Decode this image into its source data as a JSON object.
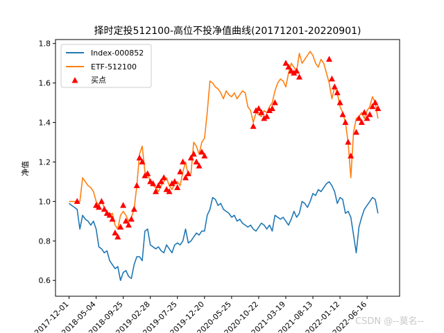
{
  "watermark": "CSDN @--莫名--",
  "chart_data": {
    "type": "line",
    "title": "择时定投512100-高位不投净值曲线(20171201-20220901)",
    "xlabel": "",
    "ylabel": "净值",
    "xlim": [
      -5,
      122
    ],
    "ylim": [
      0.52,
      1.82
    ],
    "yticks": [
      0.6,
      0.8,
      1.0,
      1.2,
      1.4,
      1.6,
      1.8
    ],
    "ytick_labels": [
      "0.6",
      "0.8",
      "1.0",
      "1.2",
      "1.4",
      "1.6",
      "1.8"
    ],
    "xticks": [
      0,
      10,
      20,
      30,
      40,
      50,
      60,
      70,
      80,
      90,
      100,
      110
    ],
    "xtick_labels": [
      "2017-12-01",
      "2018-05-04",
      "2018-09-25",
      "2019-02-28",
      "2019-07-25",
      "2019-12-20",
      "2020-05-25",
      "2020-10-22",
      "2021-03-19",
      "2021-08-13",
      "2022-01-12",
      "2022-06-16"
    ],
    "legend_position": "top-left",
    "grid": false,
    "series": [
      {
        "name": "Index-000852",
        "color": "#1f77b4",
        "x": [
          0,
          1,
          2,
          3,
          4,
          5,
          6,
          7,
          8,
          9,
          10,
          11,
          12,
          13,
          14,
          15,
          16,
          17,
          18,
          19,
          20,
          21,
          22,
          23,
          24,
          25,
          26,
          27,
          28,
          29,
          30,
          31,
          32,
          33,
          34,
          35,
          36,
          37,
          38,
          39,
          40,
          41,
          42,
          43,
          44,
          45,
          46,
          47,
          48,
          49,
          50,
          51,
          52,
          53,
          54,
          55,
          56,
          57,
          58,
          59,
          60,
          61,
          62,
          63,
          64,
          65,
          66,
          67,
          68,
          69,
          70,
          71,
          72,
          73,
          74,
          75,
          76,
          77,
          78,
          79,
          80,
          81,
          82,
          83,
          84,
          85,
          86,
          87,
          88,
          89,
          90,
          91,
          92,
          93,
          94,
          95,
          96,
          97,
          98,
          99,
          100,
          101,
          102,
          103,
          104,
          105,
          106,
          107,
          108,
          109,
          110,
          111,
          112,
          113,
          114
        ],
        "values": [
          0.99,
          0.98,
          0.97,
          0.96,
          0.86,
          0.93,
          0.91,
          0.9,
          0.88,
          0.9,
          0.86,
          0.77,
          0.76,
          0.74,
          0.75,
          0.7,
          0.68,
          0.66,
          0.67,
          0.6,
          0.64,
          0.65,
          0.62,
          0.61,
          0.68,
          0.72,
          0.72,
          0.7,
          0.85,
          0.86,
          0.78,
          0.77,
          0.76,
          0.77,
          0.75,
          0.74,
          0.78,
          0.76,
          0.74,
          0.78,
          0.79,
          0.78,
          0.8,
          0.86,
          0.79,
          0.8,
          0.82,
          0.84,
          0.83,
          0.85,
          0.85,
          0.93,
          0.96,
          1.02,
          1.01,
          0.98,
          0.99,
          0.96,
          0.95,
          0.94,
          0.92,
          0.93,
          0.9,
          0.91,
          0.89,
          0.88,
          0.87,
          0.88,
          0.86,
          0.85,
          0.87,
          0.89,
          0.88,
          0.86,
          0.88,
          0.85,
          0.93,
          0.92,
          0.91,
          0.92,
          0.9,
          0.88,
          0.91,
          0.95,
          0.92,
          0.94,
          1.0,
          0.99,
          0.97,
          1.0,
          1.04,
          1.03,
          1.06,
          1.05,
          1.07,
          1.09,
          1.1,
          1.08,
          1.05,
          0.99,
          1.02,
          1.01,
          0.94,
          0.95,
          0.92,
          0.83,
          0.74,
          0.87,
          0.92,
          0.96,
          0.98,
          1.0,
          1.02,
          1.01,
          0.94
        ]
      },
      {
        "name": "ETF-512100",
        "color": "#ff7f0e",
        "x": [
          0,
          1,
          2,
          3,
          4,
          5,
          6,
          7,
          8,
          9,
          10,
          11,
          12,
          13,
          14,
          15,
          16,
          17,
          18,
          19,
          20,
          21,
          22,
          23,
          24,
          25,
          26,
          27,
          28,
          29,
          30,
          31,
          32,
          33,
          34,
          35,
          36,
          37,
          38,
          39,
          40,
          41,
          42,
          43,
          44,
          45,
          46,
          47,
          48,
          49,
          50,
          51,
          52,
          53,
          54,
          55,
          56,
          57,
          58,
          59,
          60,
          61,
          62,
          63,
          64,
          65,
          66,
          67,
          68,
          69,
          70,
          71,
          72,
          73,
          74,
          75,
          76,
          77,
          78,
          79,
          80,
          81,
          82,
          83,
          84,
          85,
          86,
          87,
          88,
          89,
          90,
          91,
          92,
          93,
          94,
          95,
          96,
          97,
          98,
          99,
          100,
          101,
          102,
          103,
          104,
          105,
          106,
          107,
          108,
          109,
          110,
          111,
          112,
          113,
          114
        ],
        "values": [
          1.0,
          1.0,
          1.0,
          1.0,
          1.0,
          1.12,
          1.1,
          1.08,
          1.07,
          1.05,
          1.0,
          0.98,
          1.0,
          0.97,
          0.95,
          0.93,
          0.94,
          0.88,
          0.86,
          0.93,
          0.95,
          0.93,
          0.9,
          0.92,
          0.96,
          1.08,
          1.24,
          1.28,
          1.15,
          1.14,
          1.1,
          1.08,
          1.07,
          1.05,
          1.08,
          1.1,
          1.12,
          1.08,
          1.06,
          1.09,
          1.1,
          1.08,
          1.15,
          1.2,
          1.13,
          1.14,
          1.3,
          1.28,
          1.24,
          1.3,
          1.32,
          1.45,
          1.61,
          1.6,
          1.58,
          1.57,
          1.55,
          1.52,
          1.56,
          1.54,
          1.53,
          1.55,
          1.52,
          1.54,
          1.56,
          1.55,
          1.48,
          1.46,
          1.4,
          1.45,
          1.44,
          1.43,
          1.46,
          1.45,
          1.48,
          1.5,
          1.56,
          1.6,
          1.62,
          1.61,
          1.58,
          1.65,
          1.7,
          1.68,
          1.66,
          1.75,
          1.7,
          1.72,
          1.74,
          1.76,
          1.74,
          1.7,
          1.68,
          1.72,
          1.7,
          1.65,
          1.6,
          1.52,
          1.58,
          1.55,
          1.48,
          1.45,
          1.4,
          1.3,
          1.12,
          1.35,
          1.42,
          1.43,
          1.45,
          1.42,
          1.46,
          1.48,
          1.53,
          1.5,
          1.42
        ]
      }
    ],
    "buy_points": {
      "name": "买点",
      "color": "#ff0000",
      "x": [
        3,
        10,
        11,
        12,
        13,
        14,
        15,
        16,
        17,
        18,
        19,
        20,
        21,
        22,
        23,
        24,
        25,
        26,
        27,
        28,
        29,
        30,
        31,
        32,
        33,
        34,
        35,
        36,
        37,
        38,
        39,
        40,
        41,
        42,
        43,
        44,
        45,
        46,
        47,
        48,
        49,
        50,
        68,
        69,
        70,
        71,
        72,
        73,
        74,
        75,
        76,
        80,
        81,
        82,
        83,
        84,
        85,
        96,
        97,
        98,
        99,
        100,
        101,
        102,
        103,
        104,
        106,
        107,
        108,
        109,
        110,
        111,
        112,
        113,
        114
      ],
      "values": [
        1.0,
        0.98,
        0.97,
        1.0,
        0.96,
        0.94,
        0.93,
        0.91,
        0.84,
        0.82,
        0.87,
        0.98,
        0.9,
        0.88,
        0.91,
        0.96,
        1.08,
        1.22,
        1.2,
        1.13,
        1.14,
        1.1,
        1.09,
        1.05,
        1.08,
        1.1,
        1.12,
        1.06,
        1.05,
        1.09,
        1.1,
        1.07,
        1.15,
        1.2,
        1.12,
        1.14,
        1.22,
        1.24,
        1.2,
        1.18,
        1.25,
        1.23,
        1.38,
        1.46,
        1.47,
        1.45,
        1.42,
        1.43,
        1.46,
        1.47,
        1.5,
        1.7,
        1.68,
        1.66,
        1.65,
        1.66,
        1.63,
        1.72,
        1.62,
        1.58,
        1.55,
        1.5,
        1.44,
        1.4,
        1.3,
        1.23,
        1.35,
        1.42,
        1.4,
        1.45,
        1.42,
        1.44,
        1.48,
        1.5,
        1.47
      ]
    }
  }
}
